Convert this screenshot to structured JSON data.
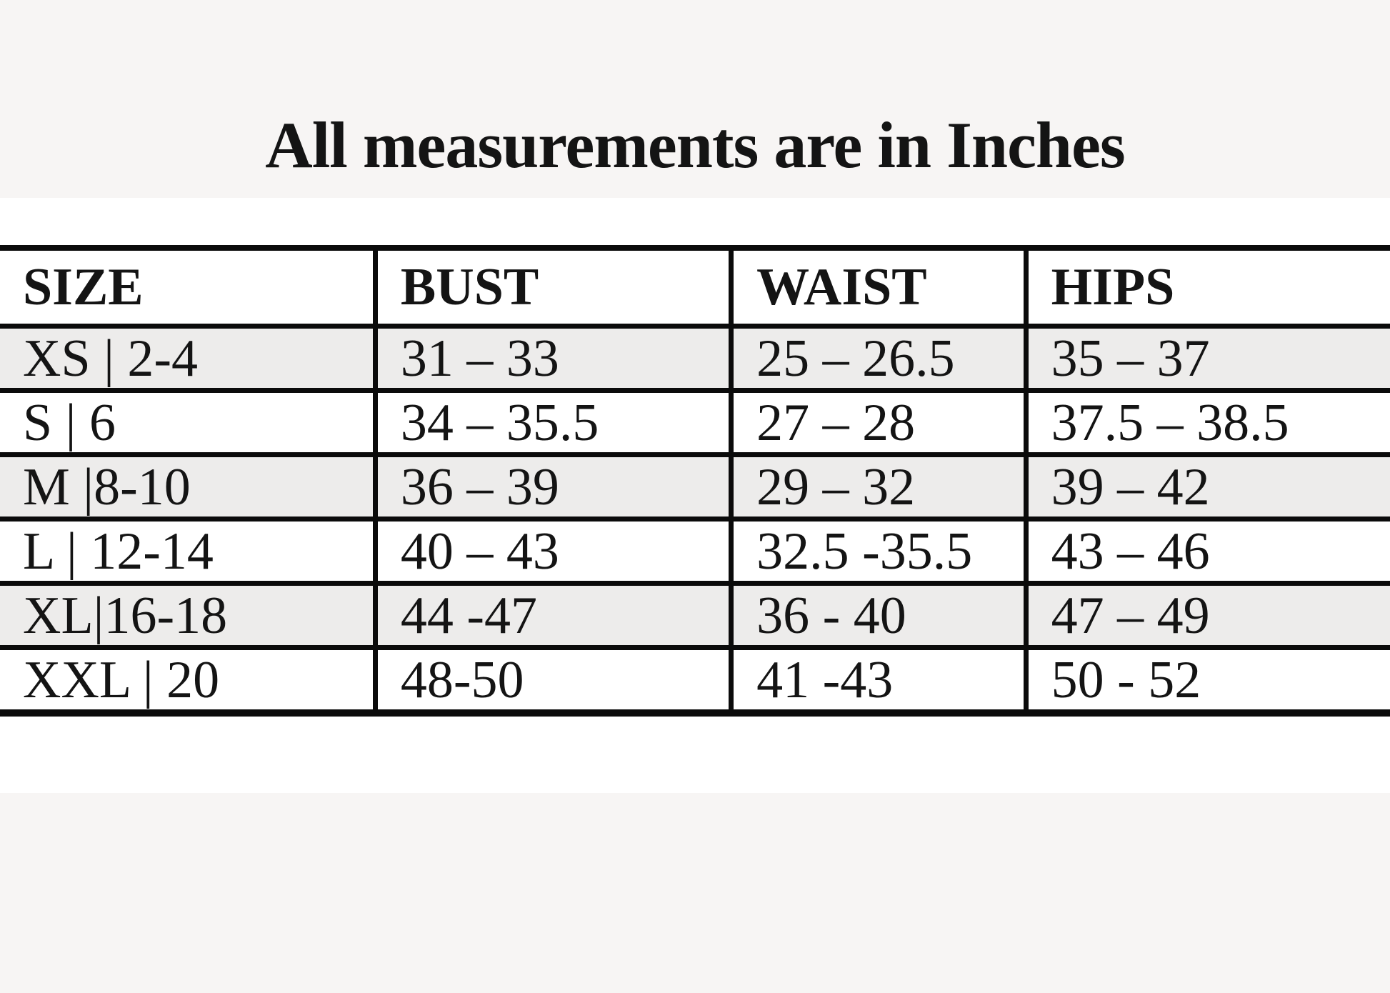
{
  "page": {
    "title": "All measurements are in Inches"
  },
  "colors": {
    "band_background": "#f7f5f4",
    "stripe_row_background": "#edeceb",
    "table_border": "#0b0b0b",
    "text": "#141414"
  },
  "table": {
    "headers": [
      "SIZE",
      "BUST",
      "WAIST",
      "HIPS"
    ],
    "rows": [
      {
        "size": "XS | 2-4",
        "bust": "31 – 33",
        "waist": "25 – 26.5",
        "hips": "35 – 37"
      },
      {
        "size": "S | 6",
        "bust": "34 – 35.5",
        "waist": "27 – 28",
        "hips": "37.5 – 38.5"
      },
      {
        "size": "M |8-10",
        "bust": "36 – 39",
        "waist": "29 – 32",
        "hips": "39 – 42"
      },
      {
        "size": "L | 12-14",
        "bust": "40 – 43",
        "waist": "32.5 -35.5",
        "hips": "43 – 46"
      },
      {
        "size": "XL|16-18",
        "bust": "44 -47",
        "waist": "36 - 40",
        "hips": "47 – 49"
      },
      {
        "size": "XXL | 20",
        "bust": "48-50",
        "waist": "41 -43",
        "hips": "50 - 52"
      }
    ]
  }
}
